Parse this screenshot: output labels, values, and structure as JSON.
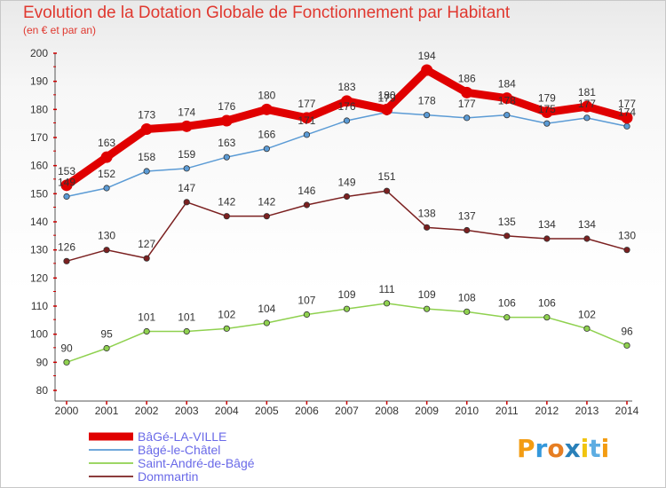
{
  "chart_data": {
    "type": "line",
    "title": "Evolution de la Dotation Globale de Fonctionnement par Habitant",
    "subtitle": "(en € et par an)",
    "x": [
      2000,
      2001,
      2002,
      2003,
      2004,
      2005,
      2006,
      2007,
      2008,
      2009,
      2010,
      2011,
      2012,
      2013,
      2014
    ],
    "ylim": [
      80,
      200
    ],
    "yticks": [
      80,
      90,
      100,
      110,
      120,
      130,
      140,
      150,
      160,
      170,
      180,
      190,
      200
    ],
    "grid": false,
    "legend_placement": "bottom-left",
    "series": [
      {
        "name": "BâGé-LA-VILLE",
        "color": "#e00000",
        "values": [
          153,
          163,
          173,
          174,
          176,
          180,
          177,
          183,
          180,
          194,
          186,
          184,
          179,
          181,
          177
        ]
      },
      {
        "name": "Bâgé-le-Châtel",
        "color": "#5b9bd5",
        "values": [
          149,
          152,
          158,
          159,
          163,
          166,
          171,
          176,
          179,
          178,
          177,
          178,
          175,
          177,
          174
        ]
      },
      {
        "name": "Saint-André-de-Bâgé",
        "color": "#8fd14f",
        "values": [
          90,
          95,
          101,
          101,
          102,
          104,
          107,
          109,
          111,
          109,
          108,
          106,
          106,
          102,
          96
        ]
      },
      {
        "name": "Dommartin",
        "color": "#7b2020",
        "values": [
          126,
          130,
          127,
          147,
          142,
          142,
          146,
          149,
          151,
          138,
          137,
          135,
          134,
          134,
          130
        ]
      }
    ]
  },
  "logo": {
    "letters": [
      "P",
      "r",
      "o",
      "x",
      "i",
      "t",
      "i"
    ],
    "colors": [
      "#f39c12",
      "#3498db",
      "#e67e22",
      "#2980b9",
      "#f1c40f",
      "#5dade2",
      "#f39c12"
    ]
  }
}
